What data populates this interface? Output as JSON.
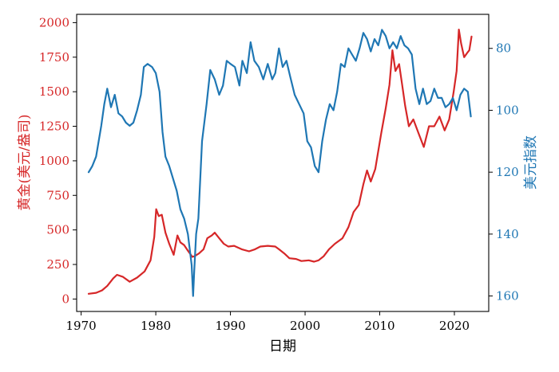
{
  "chart_data": {
    "type": "line",
    "title": "",
    "xlabel": "日期",
    "ylabel_left": "黄金(美元/盎司)",
    "ylabel_right": "美元指数",
    "xlim": [
      1969.4,
      2024.6
    ],
    "ylim_left": [
      -90,
      2060
    ],
    "ylim_right": [
      165,
      69
    ],
    "right_axis_inverted": true,
    "x_ticks": [
      1970,
      1980,
      1990,
      2000,
      2010,
      2020
    ],
    "y_ticks_left": [
      0,
      250,
      500,
      750,
      1000,
      1250,
      1500,
      1750,
      2000
    ],
    "y_ticks_right": [
      80,
      100,
      120,
      140,
      160
    ],
    "grid": false,
    "colors": {
      "gold": "#d62728",
      "usd": "#1f77b4",
      "axis": "#000000"
    },
    "series": [
      {
        "axis": "left",
        "color": "#d62728",
        "x": [
          1971.0,
          1972.0,
          1972.8,
          1973.5,
          1974.3,
          1974.8,
          1975.6,
          1976.5,
          1977.5,
          1978.5,
          1979.3,
          1979.8,
          1980.05,
          1980.4,
          1980.8,
          1981.3,
          1981.8,
          1982.4,
          1982.9,
          1983.3,
          1983.8,
          1984.3,
          1984.9,
          1985.2,
          1985.8,
          1986.4,
          1986.9,
          1987.5,
          1987.9,
          1988.5,
          1989.1,
          1989.7,
          1990.5,
          1991.5,
          1992.5,
          1993.3,
          1994.0,
          1995.0,
          1996.0,
          1996.5,
          1997.2,
          1997.9,
          1998.8,
          1999.5,
          2000.5,
          2001.2,
          2001.8,
          2002.5,
          2003.2,
          2004.0,
          2005.0,
          2005.8,
          2006.5,
          2007.2,
          2007.8,
          2008.3,
          2008.8,
          2009.4,
          2010.2,
          2010.8,
          2011.3,
          2011.7,
          2012.1,
          2012.6,
          2013.0,
          2013.4,
          2013.9,
          2014.5,
          2015.2,
          2015.9,
          2016.6,
          2017.3,
          2018.0,
          2018.7,
          2019.3,
          2019.9,
          2020.3,
          2020.6,
          2020.9,
          2021.3,
          2021.7,
          2022.0,
          2022.3
        ],
        "values": [
          38,
          45,
          63,
          95,
          150,
          175,
          160,
          125,
          155,
          200,
          280,
          450,
          650,
          600,
          610,
          480,
          400,
          320,
          460,
          410,
          390,
          350,
          305,
          310,
          330,
          360,
          440,
          460,
          480,
          440,
          400,
          380,
          385,
          360,
          345,
          360,
          380,
          385,
          380,
          360,
          330,
          295,
          290,
          275,
          280,
          270,
          280,
          310,
          360,
          400,
          440,
          520,
          630,
          680,
          830,
          930,
          850,
          940,
          1200,
          1380,
          1550,
          1800,
          1650,
          1700,
          1550,
          1400,
          1250,
          1300,
          1200,
          1100,
          1250,
          1250,
          1320,
          1220,
          1300,
          1500,
          1650,
          1950,
          1850,
          1750,
          1780,
          1800,
          1900
        ]
      },
      {
        "axis": "right",
        "color": "#1f77b4",
        "x": [
          1971.0,
          1971.5,
          1972.0,
          1972.7,
          1973.1,
          1973.5,
          1974.0,
          1974.5,
          1975.0,
          1975.5,
          1976.0,
          1976.5,
          1977.0,
          1977.5,
          1978.0,
          1978.4,
          1978.9,
          1979.5,
          1980.0,
          1980.5,
          1980.9,
          1981.3,
          1981.8,
          1982.3,
          1982.8,
          1983.3,
          1983.8,
          1984.3,
          1984.8,
          1985.0,
          1985.15,
          1985.4,
          1985.7,
          1986.2,
          1986.8,
          1987.3,
          1987.9,
          1988.5,
          1989.0,
          1989.5,
          1990.0,
          1990.6,
          1991.2,
          1991.6,
          1992.2,
          1992.7,
          1993.2,
          1993.8,
          1994.4,
          1995.0,
          1995.6,
          1996.0,
          1996.5,
          1997.0,
          1997.5,
          1998.0,
          1998.6,
          1999.2,
          1999.8,
          2000.3,
          2000.8,
          2001.3,
          2001.8,
          2002.3,
          2002.8,
          2003.3,
          2003.8,
          2004.3,
          2004.8,
          2005.3,
          2005.8,
          2006.3,
          2006.8,
          2007.3,
          2007.8,
          2008.3,
          2008.8,
          2009.3,
          2009.8,
          2010.3,
          2010.8,
          2011.3,
          2011.8,
          2012.3,
          2012.8,
          2013.3,
          2013.8,
          2014.3,
          2014.8,
          2015.3,
          2015.8,
          2016.3,
          2016.8,
          2017.3,
          2017.8,
          2018.3,
          2018.8,
          2019.3,
          2019.8,
          2020.3,
          2020.8,
          2021.3,
          2021.8,
          2022.2
        ],
        "values": [
          120,
          118,
          115,
          105,
          98,
          93,
          99,
          95,
          101,
          102,
          104,
          105,
          104,
          100,
          95,
          86,
          85,
          86,
          88,
          94,
          107,
          115,
          118,
          122,
          126,
          132,
          135,
          140,
          150,
          160,
          152,
          140,
          135,
          110,
          98,
          87,
          90,
          95,
          92,
          84,
          85,
          86,
          92,
          84,
          88,
          78,
          84,
          86,
          90,
          85,
          90,
          88,
          80,
          86,
          84,
          89,
          95,
          98,
          101,
          110,
          112,
          118,
          120,
          110,
          103,
          98,
          100,
          94,
          85,
          86,
          80,
          82,
          84,
          80,
          75,
          77,
          81,
          77,
          79,
          74,
          76,
          80,
          78,
          80,
          76,
          79,
          80,
          82,
          93,
          98,
          93,
          98,
          97,
          93,
          96,
          96,
          99,
          98,
          96,
          100,
          95,
          93,
          94,
          102
        ]
      }
    ]
  }
}
